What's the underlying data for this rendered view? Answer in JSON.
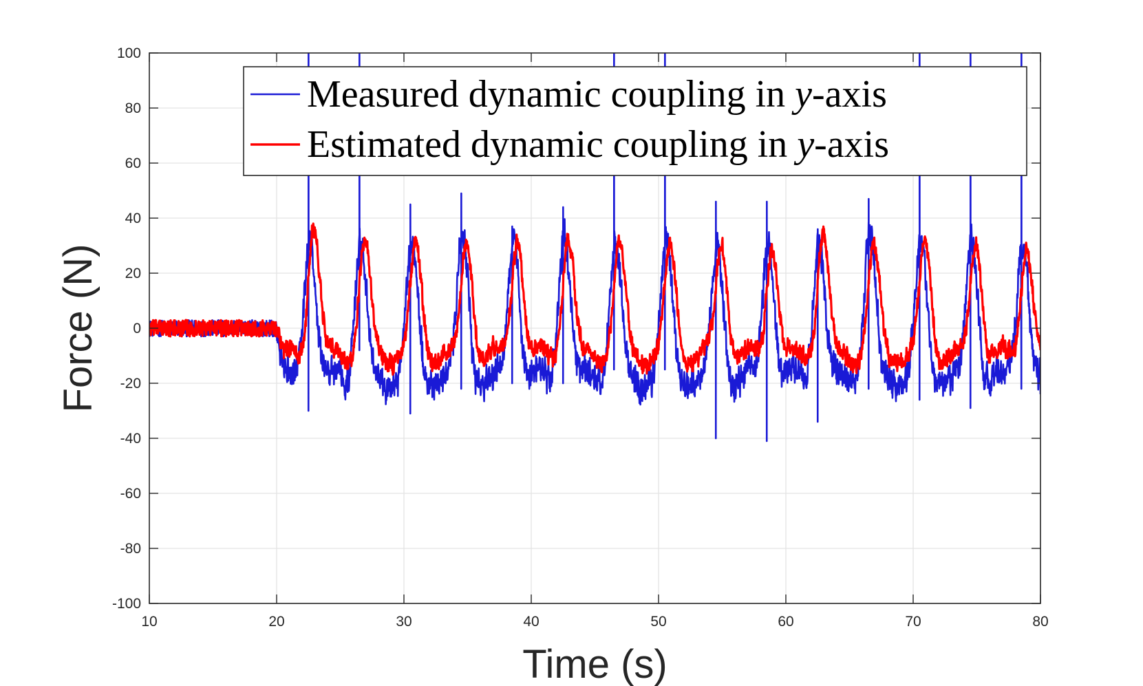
{
  "chart_data": {
    "type": "line",
    "title": "",
    "xlabel": "Time (s)",
    "ylabel": "Force (N)",
    "xlim": [
      10,
      80
    ],
    "ylim": [
      -100,
      100
    ],
    "grid": true,
    "xticks": [
      10,
      20,
      30,
      40,
      50,
      60,
      70,
      80
    ],
    "yticks": [
      -100,
      -80,
      -60,
      -40,
      -20,
      0,
      20,
      40,
      60,
      80,
      100
    ],
    "xtick_labels": [
      "10",
      "20",
      "30",
      "40",
      "50",
      "60",
      "70",
      "80"
    ],
    "ytick_labels": [
      "-100",
      "-80",
      "-60",
      "-40",
      "-20",
      "0",
      "20",
      "40",
      "60",
      "80",
      "100"
    ],
    "legend_position": "top-right",
    "series": [
      {
        "name": "Measured dynamic coupling in y-axis",
        "legend_prefix": "Measured dynamic coupling in ",
        "legend_var": "y",
        "legend_suffix": "-axis",
        "color": "#1a1ad6",
        "baseline": {
          "t_start": 10,
          "t_end": 20,
          "mean": 0,
          "noise_amplitude": 3
        },
        "oscillation": {
          "t_start": 20,
          "t_end": 80,
          "period": 4,
          "peak_value": 32,
          "trough_value": -18,
          "noise_amplitude": 6
        },
        "peaks": [
          {
            "t": 22.6,
            "value": 33
          },
          {
            "t": 26.6,
            "value": 33
          },
          {
            "t": 30.6,
            "value": 33
          },
          {
            "t": 34.6,
            "value": 36
          },
          {
            "t": 38.6,
            "value": 33
          },
          {
            "t": 42.6,
            "value": 35
          },
          {
            "t": 46.6,
            "value": 33
          },
          {
            "t": 50.6,
            "value": 34
          },
          {
            "t": 54.6,
            "value": 31
          },
          {
            "t": 58.6,
            "value": 32
          },
          {
            "t": 62.6,
            "value": 32
          },
          {
            "t": 66.6,
            "value": 36
          },
          {
            "t": 70.6,
            "value": 33
          },
          {
            "t": 74.6,
            "value": 34
          },
          {
            "t": 78.6,
            "value": 33
          }
        ],
        "spikes": [
          {
            "t": 22.5,
            "high": 100,
            "low": -30
          },
          {
            "t": 26.5,
            "high": 100,
            "low": -8
          },
          {
            "t": 30.5,
            "high": 45,
            "low": -31
          },
          {
            "t": 34.5,
            "high": 49,
            "low": -22
          },
          {
            "t": 38.5,
            "high": 37,
            "low": -20
          },
          {
            "t": 42.5,
            "high": 44,
            "low": -20
          },
          {
            "t": 46.5,
            "high": 100,
            "low": -15
          },
          {
            "t": 50.5,
            "high": 100,
            "low": -15
          },
          {
            "t": 54.5,
            "high": 46,
            "low": -40
          },
          {
            "t": 58.5,
            "high": 46,
            "low": -41
          },
          {
            "t": 62.5,
            "high": 36,
            "low": -34
          },
          {
            "t": 66.5,
            "high": 47,
            "low": -22
          },
          {
            "t": 70.5,
            "high": 100,
            "low": -26
          },
          {
            "t": 74.5,
            "high": 100,
            "low": -29
          },
          {
            "t": 78.5,
            "high": 100,
            "low": -22
          }
        ],
        "end_value": -24
      },
      {
        "name": "Estimated dynamic coupling in y-axis",
        "legend_prefix": "Estimated dynamic coupling in ",
        "legend_var": "y",
        "legend_suffix": "-axis",
        "color": "#ff0000",
        "baseline": {
          "t_start": 10,
          "t_end": 20,
          "mean": 0,
          "noise_amplitude": 3
        },
        "oscillation": {
          "t_start": 20,
          "t_end": 80,
          "period": 4,
          "peak_value": 30,
          "trough_value": -10,
          "noise_amplitude": 3.5
        },
        "peaks": [
          {
            "t": 22.9,
            "value": 38
          },
          {
            "t": 26.9,
            "value": 33
          },
          {
            "t": 30.9,
            "value": 32
          },
          {
            "t": 34.9,
            "value": 32
          },
          {
            "t": 38.9,
            "value": 33
          },
          {
            "t": 42.9,
            "value": 34
          },
          {
            "t": 46.9,
            "value": 32
          },
          {
            "t": 50.9,
            "value": 32
          },
          {
            "t": 54.9,
            "value": 32
          },
          {
            "t": 58.9,
            "value": 30
          },
          {
            "t": 62.9,
            "value": 36
          },
          {
            "t": 66.9,
            "value": 32
          },
          {
            "t": 70.9,
            "value": 33
          },
          {
            "t": 74.9,
            "value": 32
          },
          {
            "t": 78.9,
            "value": 30
          }
        ],
        "end_value": -8
      }
    ]
  }
}
